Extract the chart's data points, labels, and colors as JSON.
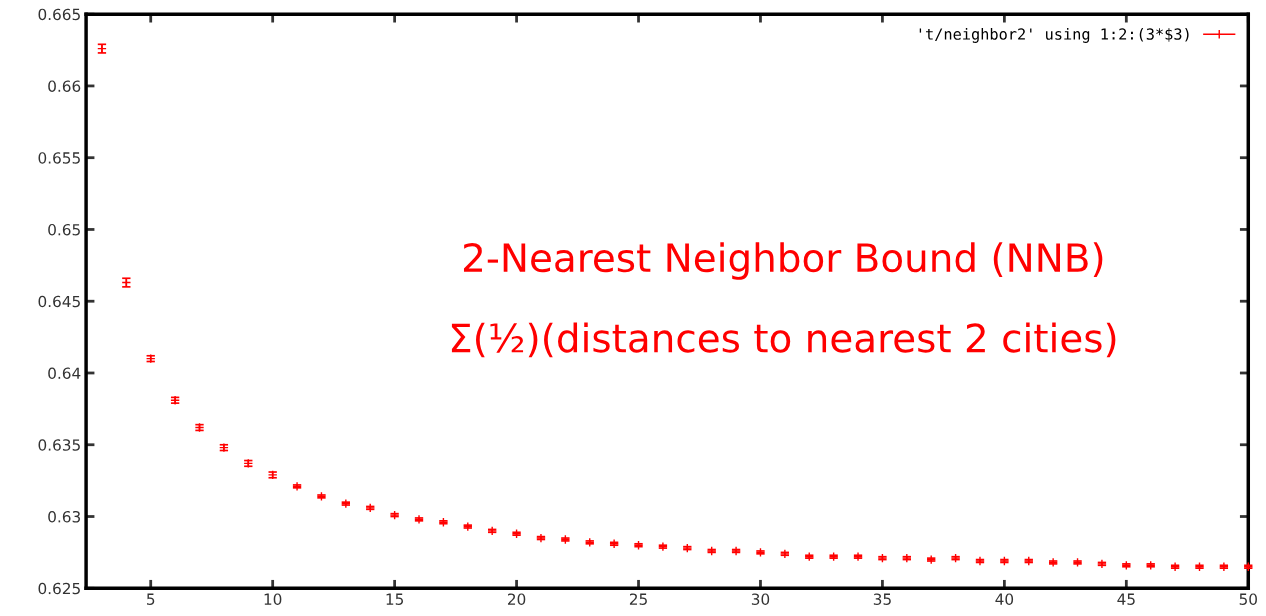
{
  "chart_data": {
    "type": "scatter",
    "x": [
      3,
      4,
      5,
      6,
      7,
      8,
      9,
      10,
      11,
      12,
      13,
      14,
      15,
      16,
      17,
      18,
      19,
      20,
      21,
      22,
      23,
      24,
      25,
      26,
      27,
      28,
      29,
      30,
      31,
      32,
      33,
      34,
      35,
      36,
      37,
      38,
      39,
      40,
      41,
      42,
      43,
      44,
      45,
      46,
      47,
      48,
      49,
      50
    ],
    "series": [
      {
        "name": "'t/neighbor2' using 1:2:(3*$3)",
        "color": "#ff0000",
        "values": [
          0.6626,
          0.6463,
          0.641,
          0.6381,
          0.6362,
          0.6348,
          0.6337,
          0.6329,
          0.6321,
          0.6314,
          0.6309,
          0.6306,
          0.6301,
          0.6298,
          0.6296,
          0.6293,
          0.629,
          0.6288,
          0.6285,
          0.6284,
          0.6282,
          0.6281,
          0.628,
          0.6279,
          0.6278,
          0.6276,
          0.6276,
          0.6275,
          0.6274,
          0.6272,
          0.6272,
          0.6272,
          0.6271,
          0.6271,
          0.627,
          0.6271,
          0.6269,
          0.6269,
          0.6269,
          0.6268,
          0.6268,
          0.6267,
          0.6266,
          0.6266,
          0.6265,
          0.6265,
          0.6265,
          0.6265
        ],
        "errors": [
          0.0003,
          0.0003,
          0.0002,
          0.0002,
          0.0002,
          0.0002,
          0.0002,
          0.0002,
          0.0001,
          0.0001,
          0.0001,
          0.0001,
          0.0001,
          0.0001,
          0.0001,
          0.0001,
          0.0001,
          0.0001,
          0.0001,
          0.0001,
          0.0001,
          0.0001,
          0.0001,
          0.0001,
          0.0001,
          0.0001,
          0.0001,
          0.0001,
          0.0001,
          0.0001,
          0.0001,
          0.0001,
          0.0001,
          0.0001,
          0.0001,
          0.0001,
          0.0001,
          0.0001,
          0.0001,
          0.0001,
          0.0001,
          0.0001,
          0.0001,
          0.0001,
          0.0001,
          0.0001,
          0.0001,
          0.0001
        ]
      }
    ],
    "xlim": [
      2.35,
      50
    ],
    "xticks": [
      5,
      10,
      15,
      20,
      25,
      30,
      35,
      40,
      45,
      50
    ],
    "ylim": [
      0.625,
      0.665
    ],
    "yticks": [
      0.625,
      0.63,
      0.635,
      0.64,
      0.645,
      0.65,
      0.655,
      0.66,
      0.665
    ],
    "annotations": [
      "2-Nearest Neighbor Bound (NNB)",
      "Σ(½)(distances to nearest 2 cities)"
    ],
    "grid": false,
    "legend": "top right",
    "marker": "cross"
  }
}
